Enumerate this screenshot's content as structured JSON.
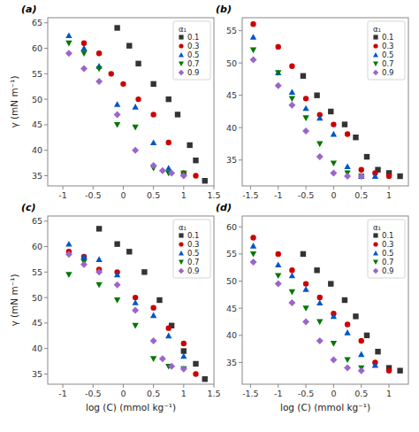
{
  "chart_data": [
    {
      "type": "scatter",
      "title": "(a)",
      "ylabel": "γ (mN m⁻¹)",
      "xlim": [
        -1.25,
        1.5
      ],
      "xticks": [
        -1,
        -0.5,
        0,
        0.5,
        1,
        1.5
      ],
      "ylim": [
        33,
        66
      ],
      "yticks": [
        35,
        40,
        45,
        50,
        55,
        60,
        65
      ],
      "grid": false,
      "legend": "upper right",
      "legend_title": "α₁",
      "series": [
        {
          "name": "0.1",
          "color": "#333333",
          "marker": "square",
          "x": [
            -0.1,
            0.1,
            0.25,
            0.5,
            0.75,
            0.9,
            1.1,
            1.2,
            1.35
          ],
          "values": [
            64.0,
            60.5,
            57.0,
            53.0,
            50.0,
            47.0,
            41.0,
            38.0,
            34.0
          ]
        },
        {
          "name": "0.3",
          "color": "#cc0000",
          "marker": "circle",
          "x": [
            -0.65,
            -0.4,
            -0.2,
            0.0,
            0.25,
            0.5,
            0.75,
            1.0,
            1.2
          ],
          "values": [
            61.0,
            59.0,
            55.0,
            53.0,
            50.0,
            47.0,
            41.5,
            35.5,
            35.0
          ]
        },
        {
          "name": "0.5",
          "color": "#0055cc",
          "marker": "triangle-up",
          "x": [
            -0.9,
            -0.65,
            -0.4,
            -0.1,
            0.2,
            0.5,
            0.75,
            1.0
          ],
          "values": [
            62.5,
            60.0,
            56.5,
            49.0,
            48.5,
            41.5,
            36.5,
            35.5
          ]
        },
        {
          "name": "0.7",
          "color": "#007700",
          "marker": "triangle-down",
          "x": [
            -0.9,
            -0.65,
            -0.4,
            -0.1,
            0.2,
            0.5,
            0.75,
            1.0
          ],
          "values": [
            61.0,
            59.0,
            56.0,
            45.0,
            44.5,
            36.5,
            35.5,
            35.5
          ]
        },
        {
          "name": "0.9",
          "color": "#9966cc",
          "marker": "diamond",
          "x": [
            -0.9,
            -0.65,
            -0.4,
            -0.1,
            0.2,
            0.5,
            0.65,
            0.8,
            1.0
          ],
          "values": [
            59.0,
            56.0,
            53.5,
            47.0,
            40.0,
            37.0,
            36.0,
            35.5,
            35.0
          ]
        }
      ]
    },
    {
      "type": "scatter",
      "title": "(b)",
      "xlim": [
        -1.65,
        1.35
      ],
      "xticks": [
        -1.5,
        -1,
        -0.5,
        0,
        0.5,
        1
      ],
      "ylim": [
        31,
        57
      ],
      "yticks": [
        35,
        40,
        45,
        50,
        55
      ],
      "grid": false,
      "legend": "upper right",
      "legend_title": "α₁",
      "series": [
        {
          "name": "0.1",
          "color": "#333333",
          "marker": "square",
          "x": [
            -0.55,
            -0.3,
            -0.05,
            0.2,
            0.4,
            0.6,
            0.8,
            1.0,
            1.2
          ],
          "values": [
            48.0,
            45.0,
            42.5,
            40.5,
            38.5,
            35.5,
            33.5,
            33.0,
            32.5
          ]
        },
        {
          "name": "0.3",
          "color": "#cc0000",
          "marker": "circle",
          "x": [
            -1.45,
            -1.0,
            -0.75,
            -0.5,
            -0.25,
            0.0,
            0.25,
            0.5,
            0.75,
            1.0
          ],
          "values": [
            56.0,
            52.5,
            49.5,
            44.5,
            42.0,
            40.5,
            39.0,
            33.5,
            33.0,
            32.5
          ]
        },
        {
          "name": "0.5",
          "color": "#0055cc",
          "marker": "triangle-up",
          "x": [
            -1.45,
            -1.0,
            -0.75,
            -0.5,
            -0.25,
            0.0,
            0.25,
            0.5,
            0.75
          ],
          "values": [
            54.0,
            48.5,
            45.5,
            43.0,
            41.5,
            39.0,
            34.0,
            32.5,
            32.5
          ]
        },
        {
          "name": "0.7",
          "color": "#007700",
          "marker": "triangle-down",
          "x": [
            -1.45,
            -1.0,
            -0.75,
            -0.5,
            -0.25,
            0.0,
            0.25,
            0.5
          ],
          "values": [
            52.0,
            48.5,
            44.5,
            41.5,
            37.5,
            34.5,
            33.0,
            32.5
          ]
        },
        {
          "name": "0.9",
          "color": "#9966cc",
          "marker": "diamond",
          "x": [
            -1.45,
            -1.0,
            -0.75,
            -0.5,
            -0.25,
            0.0,
            0.25,
            0.5
          ],
          "values": [
            50.5,
            46.5,
            43.5,
            39.5,
            35.5,
            33.0,
            32.5,
            32.5
          ]
        }
      ]
    },
    {
      "type": "scatter",
      "title": "(c)",
      "ylabel": "γ (mN m⁻¹)",
      "xlabel": "log (C) (mmol kg⁻¹)",
      "xlim": [
        -1.25,
        1.5
      ],
      "xticks": [
        -1,
        -0.5,
        0,
        0.5,
        1,
        1.5
      ],
      "ylim": [
        33,
        66
      ],
      "yticks": [
        35,
        40,
        45,
        50,
        55,
        60,
        65
      ],
      "grid": false,
      "legend": "upper right",
      "legend_title": "α₁",
      "series": [
        {
          "name": "0.1",
          "color": "#333333",
          "marker": "square",
          "x": [
            -0.4,
            -0.1,
            0.1,
            0.35,
            0.6,
            0.8,
            1.0,
            1.2,
            1.35
          ],
          "values": [
            63.5,
            60.5,
            59.0,
            55.0,
            49.5,
            44.5,
            39.5,
            37.0,
            34.0
          ]
        },
        {
          "name": "0.3",
          "color": "#cc0000",
          "marker": "circle",
          "x": [
            -0.9,
            -0.65,
            -0.4,
            -0.1,
            0.2,
            0.5,
            0.75,
            1.0,
            1.2
          ],
          "values": [
            59.0,
            58.0,
            55.5,
            55.0,
            50.0,
            48.0,
            44.0,
            41.0,
            35.0
          ]
        },
        {
          "name": "0.5",
          "color": "#0055cc",
          "marker": "triangle-up",
          "x": [
            -0.9,
            -0.65,
            -0.4,
            -0.1,
            0.2,
            0.5,
            0.75,
            1.0
          ],
          "values": [
            60.5,
            58.0,
            57.5,
            54.5,
            49.0,
            46.5,
            42.5,
            38.5
          ]
        },
        {
          "name": "0.7",
          "color": "#007700",
          "marker": "triangle-down",
          "x": [
            -0.9,
            -0.65,
            -0.4,
            -0.1,
            0.2,
            0.5,
            0.75,
            1.0
          ],
          "values": [
            54.5,
            57.0,
            52.5,
            49.5,
            44.5,
            38.0,
            36.5,
            36.0
          ]
        },
        {
          "name": "0.9",
          "color": "#9966cc",
          "marker": "diamond",
          "x": [
            -0.9,
            -0.65,
            -0.4,
            -0.1,
            0.2,
            0.5,
            0.65,
            0.8,
            1.0
          ],
          "values": [
            58.5,
            56.5,
            55.0,
            52.5,
            47.5,
            41.5,
            38.0,
            36.5,
            36.0
          ]
        }
      ]
    },
    {
      "type": "scatter",
      "title": "(d)",
      "xlabel": "log (C) (mmol kg⁻¹)",
      "xlim": [
        -1.65,
        1.35
      ],
      "xticks": [
        -1.5,
        -1,
        -0.5,
        0,
        0.5,
        1
      ],
      "ylim": [
        31,
        62
      ],
      "yticks": [
        35,
        40,
        45,
        50,
        55,
        60
      ],
      "grid": false,
      "legend": "upper right",
      "legend_title": "α₁",
      "series": [
        {
          "name": "0.1",
          "color": "#333333",
          "marker": "square",
          "x": [
            -0.55,
            -0.3,
            -0.05,
            0.2,
            0.4,
            0.6,
            0.8,
            1.0,
            1.2
          ],
          "values": [
            55.0,
            52.0,
            49.5,
            46.5,
            43.5,
            40.0,
            37.0,
            34.0,
            33.5
          ]
        },
        {
          "name": "0.3",
          "color": "#cc0000",
          "marker": "circle",
          "x": [
            -1.45,
            -1.0,
            -0.75,
            -0.5,
            -0.25,
            0.0,
            0.25,
            0.5,
            0.75,
            1.0
          ],
          "values": [
            58.0,
            55.0,
            52.0,
            49.5,
            47.0,
            44.0,
            42.0,
            39.0,
            35.0,
            33.5
          ]
        },
        {
          "name": "0.5",
          "color": "#0055cc",
          "marker": "triangle-up",
          "x": [
            -1.45,
            -1.0,
            -0.75,
            -0.5,
            -0.25,
            0.0,
            0.25,
            0.5,
            0.75
          ],
          "values": [
            56.5,
            53.0,
            51.0,
            48.5,
            46.0,
            43.5,
            40.5,
            36.5,
            34.5
          ]
        },
        {
          "name": "0.7",
          "color": "#007700",
          "marker": "triangle-down",
          "x": [
            -1.45,
            -1.0,
            -0.75,
            -0.5,
            -0.25,
            0.0,
            0.25,
            0.5
          ],
          "values": [
            55.0,
            51.0,
            48.0,
            45.0,
            42.5,
            38.5,
            35.5,
            34.0
          ]
        },
        {
          "name": "0.9",
          "color": "#9966cc",
          "marker": "diamond",
          "x": [
            -1.45,
            -1.0,
            -0.75,
            -0.5,
            -0.25,
            0.0,
            0.25,
            0.5
          ],
          "values": [
            53.5,
            49.5,
            46.0,
            42.5,
            39.0,
            35.5,
            34.0,
            33.5
          ]
        }
      ]
    }
  ]
}
